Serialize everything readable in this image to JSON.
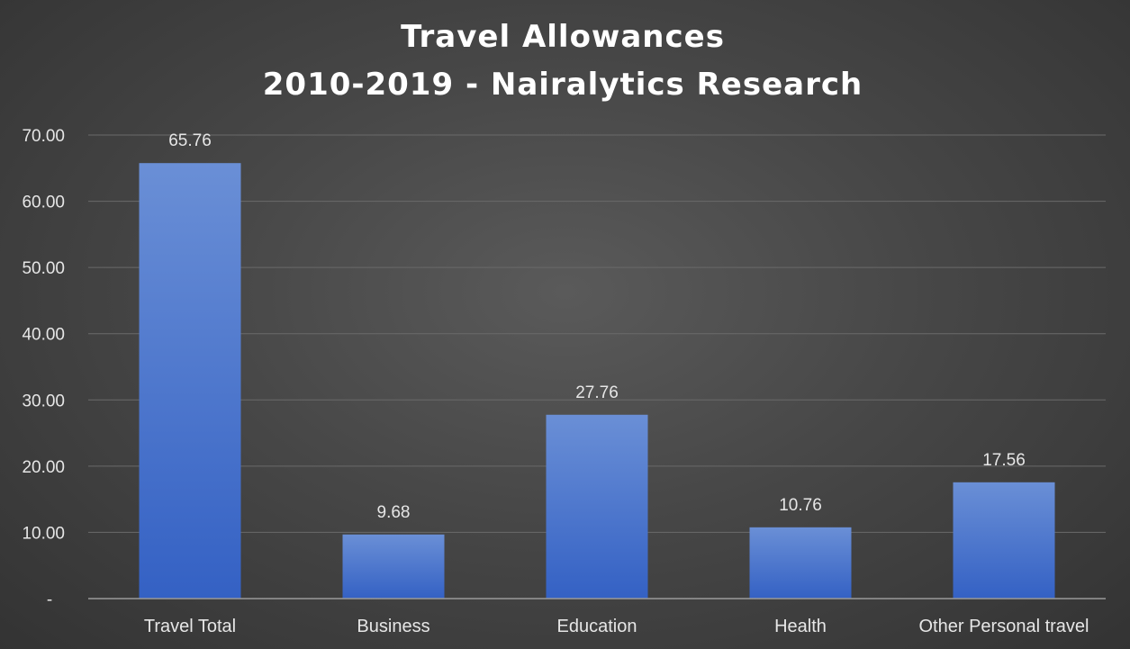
{
  "chart_data": {
    "type": "bar",
    "title": "Travel Allowances",
    "subtitle": "2010-2019 - Nairalytics Research",
    "categories": [
      "Travel Total",
      "Business",
      "Education",
      "Health",
      "Other Personal travel"
    ],
    "values": [
      65.76,
      9.68,
      27.76,
      10.76,
      17.56
    ],
    "data_labels": [
      "65.76",
      "9.68",
      "27.76",
      "10.76",
      "17.56"
    ],
    "y_ticks": [
      0,
      10,
      20,
      30,
      40,
      50,
      60,
      70
    ],
    "y_tick_labels": [
      "-",
      "10.00",
      "20.00",
      "30.00",
      "40.00",
      "50.00",
      "60.00",
      "70.00"
    ],
    "ylim": [
      0,
      70
    ],
    "grid": true,
    "legend": "none",
    "bar_color_top": "#6a8fd6",
    "bar_color_bottom": "#3461c4",
    "background_color": "#474747"
  }
}
